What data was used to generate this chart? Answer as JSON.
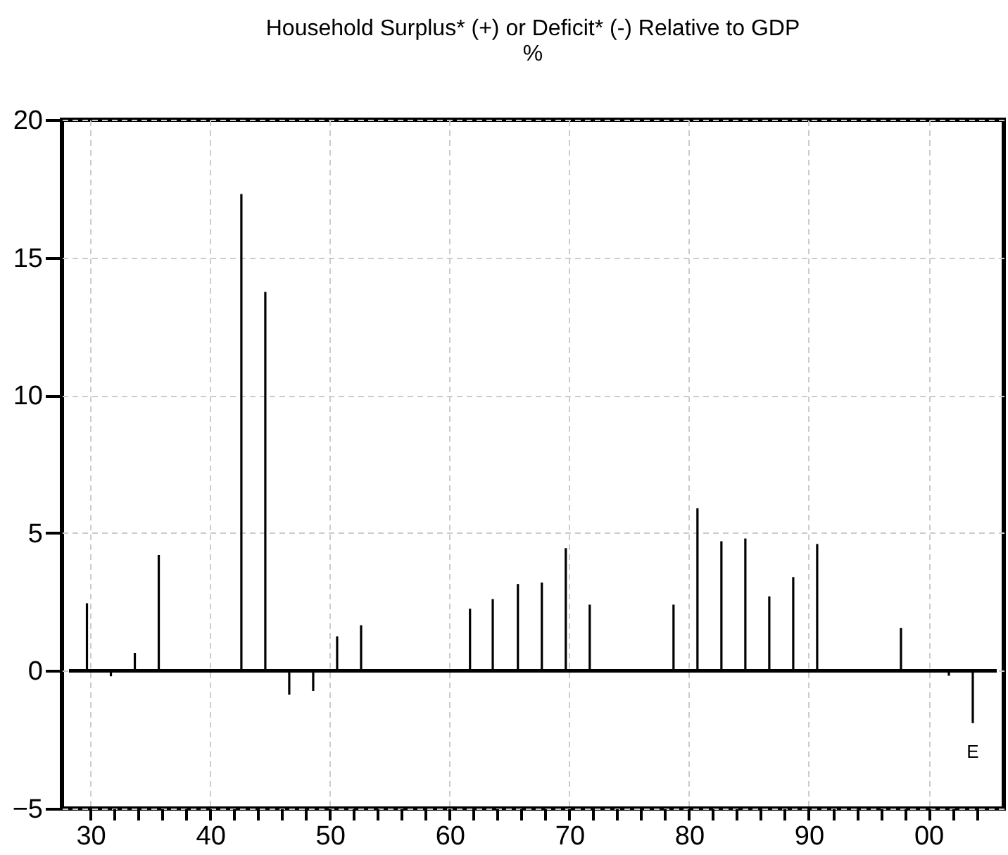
{
  "chart_data": {
    "type": "bar",
    "title": "Household Surplus* (+) or Deficit* (-) Relative to GDP",
    "subtitle": "%",
    "x": [
      1929.7,
      1931.7,
      1933.7,
      1935.7,
      1942.6,
      1944.6,
      1946.6,
      1948.6,
      1950.6,
      1952.6,
      1961.7,
      1963.6,
      1965.7,
      1967.7,
      1969.7,
      1971.7,
      1978.7,
      1980.7,
      1982.7,
      1984.7,
      1986.7,
      1988.7,
      1990.7,
      1997.7,
      2001.7,
      2003.7
    ],
    "values": [
      2.45,
      -0.2,
      0.65,
      4.2,
      17.3,
      13.75,
      -0.87,
      -0.73,
      1.25,
      1.65,
      2.25,
      2.6,
      3.15,
      3.2,
      4.45,
      2.4,
      2.4,
      5.9,
      4.7,
      4.8,
      2.7,
      3.4,
      4.6,
      1.55,
      -0.18,
      -1.9
    ],
    "color": "#000000",
    "xlim": [
      1928.2,
      2005.7
    ],
    "xticks": [
      {
        "value": 1930,
        "label": "30"
      },
      {
        "value": 1932,
        "label": null
      },
      {
        "value": 1934,
        "label": null
      },
      {
        "value": 1936,
        "label": null
      },
      {
        "value": 1938,
        "label": null
      },
      {
        "value": 1940,
        "label": "40"
      },
      {
        "value": 1942,
        "label": null
      },
      {
        "value": 1944,
        "label": null
      },
      {
        "value": 1946,
        "label": null
      },
      {
        "value": 1948,
        "label": null
      },
      {
        "value": 1950,
        "label": "50"
      },
      {
        "value": 1952,
        "label": null
      },
      {
        "value": 1954,
        "label": null
      },
      {
        "value": 1956,
        "label": null
      },
      {
        "value": 1958,
        "label": null
      },
      {
        "value": 1960,
        "label": "60"
      },
      {
        "value": 1962,
        "label": null
      },
      {
        "value": 1964,
        "label": null
      },
      {
        "value": 1966,
        "label": null
      },
      {
        "value": 1968,
        "label": null
      },
      {
        "value": 1970,
        "label": "70"
      },
      {
        "value": 1972,
        "label": null
      },
      {
        "value": 1974,
        "label": null
      },
      {
        "value": 1976,
        "label": null
      },
      {
        "value": 1978,
        "label": null
      },
      {
        "value": 1980,
        "label": "80"
      },
      {
        "value": 1982,
        "label": null
      },
      {
        "value": 1984,
        "label": null
      },
      {
        "value": 1986,
        "label": null
      },
      {
        "value": 1988,
        "label": null
      },
      {
        "value": 1990,
        "label": "90"
      },
      {
        "value": 1992,
        "label": null
      },
      {
        "value": 1994,
        "label": null
      },
      {
        "value": 1996,
        "label": null
      },
      {
        "value": 1998,
        "label": null
      },
      {
        "value": 2000,
        "label": "00"
      },
      {
        "value": 2002,
        "label": null
      },
      {
        "value": 2004,
        "label": null
      }
    ],
    "ylim": [
      -5,
      20
    ],
    "yticks": [
      -5,
      0,
      5,
      10,
      15,
      20
    ],
    "grid": true,
    "ref_lines": [
      {
        "axis": "y",
        "value": 0,
        "color": "#000000"
      }
    ],
    "annotations": [
      "E"
    ]
  }
}
